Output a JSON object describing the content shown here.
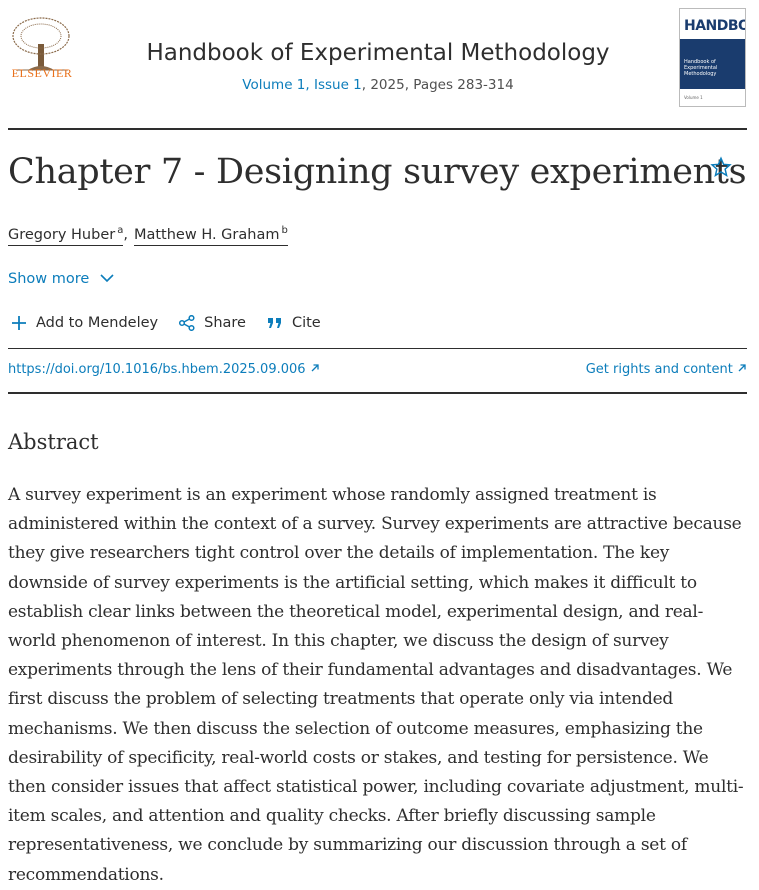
{
  "header": {
    "publisher": "ELSEVIER",
    "journal": "Handbook of Experimental Methodology",
    "issue_link": "Volume 1, Issue 1",
    "issue_rest": ", 2025, Pages 283-314",
    "cover": {
      "series": "HANDBOOKS",
      "title": "Handbook of Experimental Methodology",
      "volume": "Volume 1"
    }
  },
  "article": {
    "title": "Chapter 7 - Designing survey experiments",
    "authors": [
      {
        "name": "Gregory Huber",
        "affiliation": "a"
      },
      {
        "name": "Matthew H. Graham",
        "affiliation": "b"
      }
    ],
    "author_separator": ",",
    "show_more": "Show more",
    "actions": [
      "Add to Mendeley",
      "Share",
      "Cite"
    ],
    "doi": "https://doi.org/10.1016/bs.hbem.2025.09.006",
    "rights": "Get rights and content"
  },
  "abstract": {
    "heading": "Abstract",
    "text": "A survey experiment is an experiment whose randomly assigned treatment is administered within the context of a survey. Survey experiments are attractive because they give researchers tight control over the details of implementation. The key downside of survey experiments is the artificial setting, which makes it difficult to establish clear links between the theoretical model, experimental design, and real-world phenomenon of interest. In this chapter, we discuss the design of survey experiments through the lens of their fundamental advantages and disadvantages. We first discuss the problem of selecting treatments that operate only via intended mechanisms. We then discuss the selection of outcome measures, emphasizing the desirability of specificity, real-world costs or stakes, and testing for persistence. We then consider issues that affect statistical power, including covariate adjustment, multi-item scales, and attention and quality checks. After briefly discussing sample representativeness, we conclude by summarizing our discussion through a set of recommendations."
  }
}
